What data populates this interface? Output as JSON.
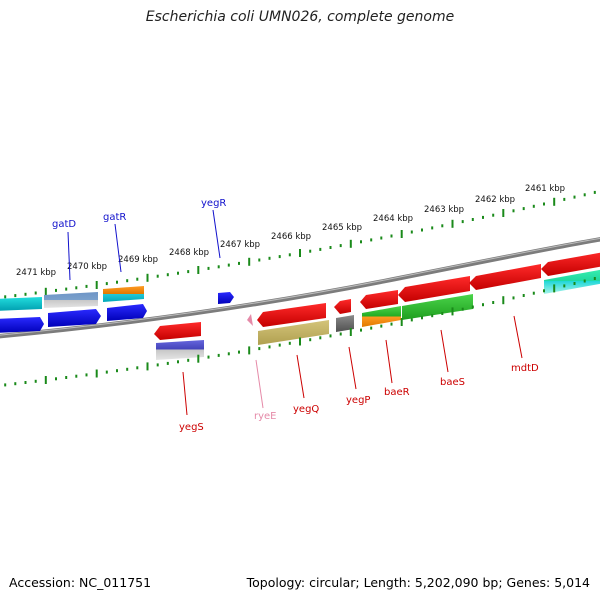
{
  "title": "Escherichia coli UMN026, complete genome",
  "footer": {
    "accession": "Accession: NC_011751",
    "summary": "Topology: circular; Length: 5,202,090 bp; Genes: 5,014"
  },
  "ruler": {
    "labels": [
      "2461 kbp",
      "2462 kbp",
      "2463 kbp",
      "2464 kbp",
      "2465 kbp",
      "2466 kbp",
      "2467 kbp",
      "2468 kbp",
      "2469 kbp",
      "2470 kbp",
      "2471 kbp"
    ]
  },
  "genes": [
    {
      "name": "gatD",
      "color": "#1111cc"
    },
    {
      "name": "gatR",
      "color": "#1111cc"
    },
    {
      "name": "yegR",
      "color": "#1111cc"
    },
    {
      "name": "yegS",
      "color": "#cc0000"
    },
    {
      "name": "ryeE",
      "color": "#e58aa8"
    },
    {
      "name": "yegQ",
      "color": "#cc0000"
    },
    {
      "name": "yegP",
      "color": "#cc0000"
    },
    {
      "name": "baeR",
      "color": "#cc0000"
    },
    {
      "name": "baeS",
      "color": "#cc0000"
    },
    {
      "name": "mdtD",
      "color": "#cc0000"
    }
  ]
}
